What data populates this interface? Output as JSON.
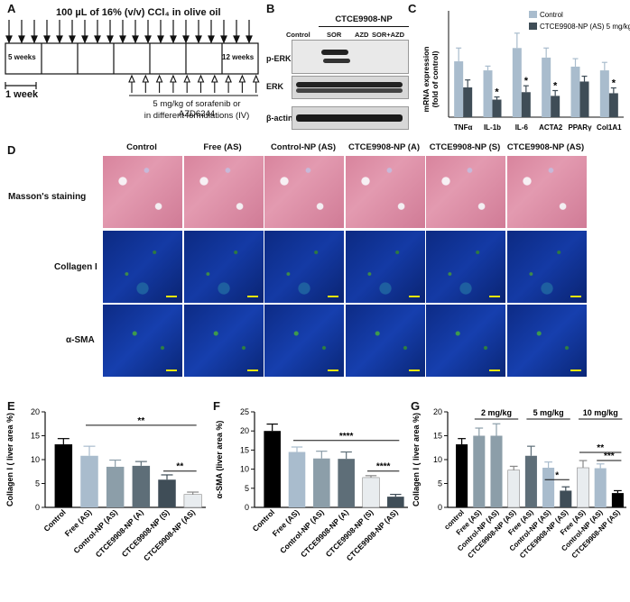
{
  "panels": {
    "a": "A",
    "b": "B",
    "c": "C",
    "d": "D",
    "e": "E",
    "f": "F",
    "g": "G"
  },
  "schedule": {
    "header": "100 µL of 16% (v/v) CCl₄ in olive oil",
    "start_label": "5 weeks",
    "end_label": "12 weeks",
    "unit_label": "1 week",
    "treatment_line1": "5 mg/kg of sorafenib or AZD6244",
    "treatment_line2": "in different formulations (IV)"
  },
  "western": {
    "group_label": "CTCE9908-NP",
    "lanes": [
      "Control",
      "SOR",
      "AZD",
      "SOR+AZD"
    ],
    "rows": [
      "p-ERK",
      "ERK",
      "β-actin"
    ]
  },
  "mrna": {
    "chart_data": {
      "type": "bar",
      "categories": [
        "TNFα",
        "IL-1b",
        "IL-6",
        "ACTA2",
        "PPARγ",
        "Col1A1"
      ],
      "series": [
        {
          "name": "Control",
          "values": [
            1.05,
            0.88,
            1.3,
            1.12,
            0.95,
            0.88
          ],
          "errors": [
            0.25,
            0.08,
            0.28,
            0.18,
            0.15,
            0.15
          ]
        },
        {
          "name": "CTCE9908-NP (AS) 5 mg/kg",
          "values": [
            0.56,
            0.33,
            0.47,
            0.4,
            0.67,
            0.45
          ],
          "errors": [
            0.14,
            0.05,
            0.12,
            0.1,
            0.1,
            0.1
          ]
        }
      ],
      "significance": [
        "",
        "*",
        "*",
        "*",
        "",
        "*"
      ],
      "ylabel_line1": "mRNA expression",
      "ylabel_line2": "(fold of control)",
      "ylim": [
        0,
        2
      ]
    },
    "colors": {
      "control": "#a9bccd",
      "treated": "#3f4d57"
    }
  },
  "histology": {
    "columns": [
      "Control",
      "Free (AS)",
      "Control-NP (AS)",
      "CTCE9908-NP (A)",
      "CTCE9908-NP (S)",
      "CTCE9908-NP (AS)"
    ],
    "rows": [
      "Masson's staining",
      "Collagen I",
      "α-SMA"
    ]
  },
  "chart_e": {
    "type": "bar",
    "ylabel": "Collagen I ( liver area %)",
    "ylim": [
      0,
      20
    ],
    "yticks": [
      "0",
      "5",
      "10",
      "15",
      "20"
    ],
    "categories": [
      "Control",
      "Free (AS)",
      "Control-NP (AS)",
      "CTCE9908-NP (A)",
      "CTCE9908-NP (S)",
      "CTCE9908-NP (AS)"
    ],
    "values": [
      13.2,
      10.8,
      8.5,
      8.7,
      5.8,
      2.7
    ],
    "errors": [
      1.2,
      2.0,
      1.4,
      0.9,
      1.0,
      0.5
    ],
    "colors": [
      "#000000",
      "#a9bccd",
      "#8c9ea9",
      "#5e6e78",
      "#3f4d57",
      "#e8ecef"
    ],
    "sig": [
      {
        "from": 1,
        "to": 5,
        "label": "**",
        "level": 17.2
      },
      {
        "from": 4,
        "to": 5,
        "label": "**",
        "level": 7.6
      }
    ]
  },
  "chart_f": {
    "type": "bar",
    "ylabel": "α-SMA (liver area %)",
    "ylim": [
      0,
      25
    ],
    "yticks": [
      "0",
      "5",
      "10",
      "15",
      "20",
      "25"
    ],
    "categories": [
      "Control",
      "Free (AS)",
      "Control-NP (AS)",
      "CTCE9908-NP (A)",
      "CTCE9908-NP (S)",
      "CTCE9908-NP (AS)"
    ],
    "values": [
      20.0,
      14.5,
      12.8,
      12.7,
      7.8,
      2.8
    ],
    "errors": [
      1.8,
      1.3,
      1.9,
      1.8,
      0.5,
      0.6
    ],
    "colors": [
      "#000000",
      "#a9bccd",
      "#8c9ea9",
      "#5e6e78",
      "#e8ecef",
      "#3f4d57"
    ],
    "sig": [
      {
        "from": 1,
        "to": 5,
        "label": "****",
        "level": 17.5
      },
      {
        "from": 4,
        "to": 5,
        "label": "****",
        "level": 9.5
      }
    ]
  },
  "chart_g": {
    "type": "bar",
    "ylabel": "Collagen I ( liver area %)",
    "ylim": [
      0,
      20
    ],
    "yticks": [
      "0",
      "5",
      "10",
      "15",
      "20"
    ],
    "groups": [
      "2 mg/kg",
      "5 mg/kg",
      "10 mg/kg"
    ],
    "categories": [
      "control",
      "Free (AS)",
      "Control-NP (AS)",
      "CTCE9908-NP (AS)",
      "Free (AS)",
      "Control-NP (AS)",
      "CTCE9908-NP (AS)",
      "Free (AS)",
      "Control-NP (AS)",
      "CTCE9908-NP (AS)"
    ],
    "values": [
      13.2,
      15.0,
      15.0,
      7.8,
      10.8,
      8.3,
      3.5,
      8.3,
      8.2,
      3.0
    ],
    "errors": [
      1.2,
      1.6,
      2.5,
      0.8,
      2.0,
      1.2,
      0.8,
      1.5,
      0.9,
      0.5
    ],
    "colors": [
      "#000000",
      "#8c9ea9",
      "#8c9ea9",
      "#e8ecef",
      "#5e6e78",
      "#a9bccd",
      "#3f4d57",
      "#e8ecef",
      "#a9bccd",
      "#000000"
    ],
    "sig": [
      {
        "from": 5,
        "to": 6,
        "label": "*",
        "level": 5.8
      },
      {
        "from": 7,
        "to": 9,
        "label": "**",
        "level": 11.5
      },
      {
        "from": 8,
        "to": 9,
        "label": "***",
        "level": 9.8
      }
    ]
  }
}
